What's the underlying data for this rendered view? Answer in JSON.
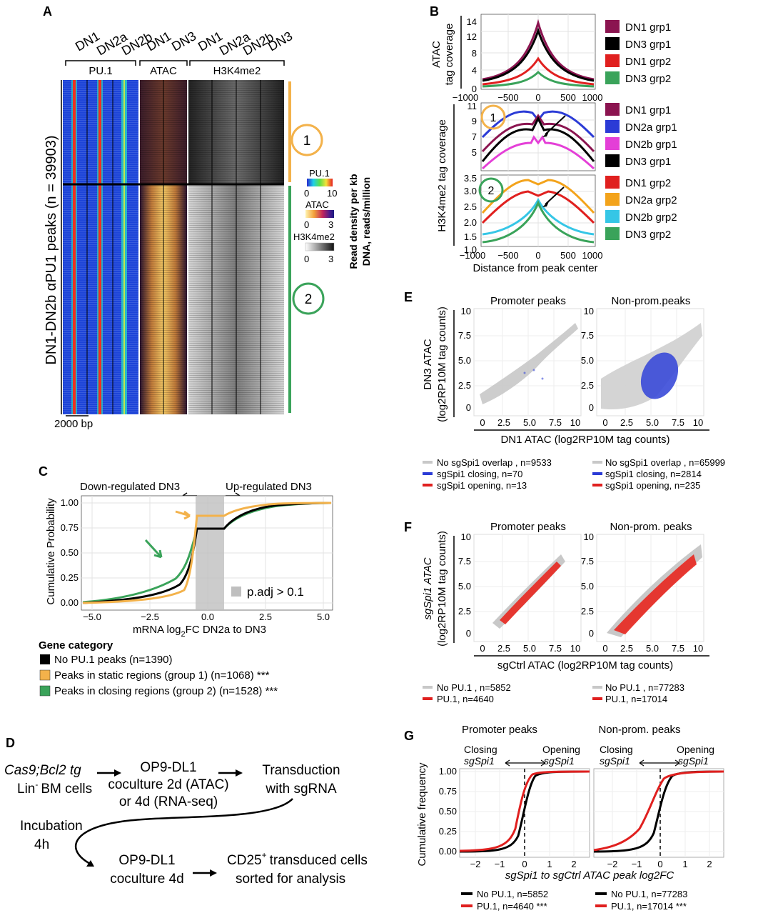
{
  "panels": {
    "A": {
      "letter": "A",
      "col_labels": [
        "DN1",
        "DN2a",
        "DN2b",
        "DN1",
        "DN3",
        "DN1",
        "DN2a",
        "DN2b",
        "DN3"
      ],
      "groups": [
        "PU.1",
        "ATAC",
        "H3K4me2"
      ],
      "ylabel": "DN1-DN2b αPU1 peaks (n = 39903)",
      "cluster1": "1",
      "cluster2": "2",
      "scale": "2000 bp",
      "legend_title": "Read density per kb DNA, reads/million",
      "legend_line1": "Read density per kb",
      "legend_line2": "DNA, reads/million",
      "legends": [
        {
          "name": "PU.1",
          "min": "0",
          "max": "10"
        },
        {
          "name": "ATAC",
          "min": "0",
          "max": "3"
        },
        {
          "name": "H3K4me2",
          "min": "0",
          "max": "3"
        }
      ]
    },
    "B": {
      "letter": "B",
      "top_ylabel1": "ATAC",
      "top_ylabel2": "tag coverage",
      "bottom_ylabel": "H3K4me2 tag coverage",
      "xlabel": "Distance from peak center",
      "marker1": "1",
      "marker2": "2",
      "top_legend": [
        "DN1 grp1",
        "DN3 grp1",
        "DN1 grp2",
        "DN3 grp2"
      ],
      "mid_legend": [
        "DN1 grp1",
        "DN2a grp1",
        "DN2b grp1",
        "DN3 grp1"
      ],
      "bot_legend": [
        "DN1 grp2",
        "DN2a grp2",
        "DN2b grp2",
        "DN3 grp2"
      ],
      "top_yticks": [
        "0",
        "4",
        "8",
        "12",
        "14"
      ],
      "mid_yticks": [
        "5",
        "7",
        "9",
        "11"
      ],
      "bot_yticks": [
        "1.0",
        "1.5",
        "2.0",
        "2.5",
        "3.0",
        "3.5"
      ],
      "xticks": [
        "−1000",
        "−500",
        "0",
        "500",
        "1000"
      ]
    },
    "C": {
      "letter": "C",
      "down_label": "Down-regulated DN3",
      "up_label": "Up-regulated DN3",
      "ylabel": "Cumulative Probability",
      "xlabel": "mRNA log2FC DN2a to DN3",
      "xlabel_main": "mRNA log",
      "xlabel_sub": "2",
      "xlabel_tail": "FC DN2a to DN3",
      "xticks": [
        "−5.0",
        "−2.5",
        "0.0",
        "2.5",
        "5.0"
      ],
      "yticks": [
        "0.00",
        "0.25",
        "0.50",
        "0.75",
        "1.00"
      ],
      "shade_label": "p.adj > 0.1",
      "legend_title": "Gene category",
      "legend": [
        {
          "label": "No PU.1 peaks (n=1390)",
          "color": "#000000"
        },
        {
          "label": "Peaks in static regions (group 1) (n=1068) ***",
          "color": "#f3b24b"
        },
        {
          "label": "Peaks in closing regions (group 2) (n=1528) ***",
          "color": "#3aa35a"
        }
      ]
    },
    "D": {
      "letter": "D",
      "box1_l1": "Cas9;Bcl2 tg",
      "box1_l2": "Lin",
      "box1_l2b": "BM cells",
      "box2_l1": "OP9-DL1",
      "box2_l2": "coculture 2d (ATAC)",
      "box2_l3": "or 4d (RNA-seq)",
      "box3_l1": "Transduction",
      "box3_l2": "with sgRNA",
      "incubation_l1": "Incubation",
      "incubation_l2": "4h",
      "box4_l1": "OP9-DL1",
      "box4_l2": "coculture 4d",
      "box5_l1": "CD25",
      "box5_l1b": "transduced cells",
      "box5_l2": "sorted for analysis"
    },
    "E": {
      "letter": "E",
      "left_title": "Promoter peaks",
      "right_title": "Non-prom.peaks",
      "ylabel1": "DN3 ATAC",
      "ylabel2": "(log2RP10M tag counts)",
      "xlabel": "DN1 ATAC (log2RP10M tag counts)",
      "ticks": [
        "0",
        "2.5",
        "5.0",
        "7.5",
        "10"
      ],
      "left_legend": [
        "No sgSpi1 overlap , n=9533",
        "sgSpi1 closing, n=70",
        "sgSpi1 opening, n=13"
      ],
      "right_legend": [
        "No sgSpi1 overlap , n=65999",
        "sgSpi1 closing, n=2814",
        "sgSpi1 opening, n=235"
      ]
    },
    "F": {
      "letter": "F",
      "left_title": "Promoter peaks",
      "right_title": "Non-prom. peaks",
      "ylabel1": "sgSpi1 ATAC",
      "ylabel2": "(log2RP10M tag counts)",
      "xlabel": "sgCtrl ATAC (log2RP10M tag counts)",
      "ticks": [
        "0",
        "2.5",
        "5.0",
        "7.5",
        "10"
      ],
      "left_legend": [
        "No PU.1 , n=5852",
        "PU.1, n=4640"
      ],
      "right_legend": [
        "No PU.1 , n=77283",
        "PU.1, n=17014"
      ]
    },
    "G": {
      "letter": "G",
      "left_title": "Promoter peaks",
      "right_title": "Non-prom. peaks",
      "closing": "Closing",
      "opening": "Opening",
      "sg": "sgSpi1",
      "ylabel": "Cumulative frequency",
      "xlabel": "sgSpi1 to sgCtrl ATAC peak log2FC",
      "xticks": [
        "−2",
        "−1",
        "0",
        "1",
        "2"
      ],
      "yticks": [
        "0.00",
        "0.25",
        "0.50",
        "0.75",
        "1.00"
      ],
      "left_legend": [
        "No PU.1, n=5852",
        "PU.1, n=4640 ***"
      ],
      "right_legend": [
        "No PU.1, n=77283",
        "PU.1, n=17014 ***"
      ]
    }
  },
  "colors": {
    "grp_orange": "#f3b24b",
    "grp_green": "#3aa35a",
    "blue": "#2b3bd6",
    "red": "#e0201f",
    "magenta": "#e43fd7",
    "maroon": "#8b1450",
    "cyan": "#35c6e6"
  },
  "chart_data": [
    {
      "type": "line",
      "title": "",
      "ylabel": "ATAC tag coverage",
      "x": [
        -1000,
        -500,
        0,
        500,
        1000
      ],
      "ylim": [
        0,
        14
      ],
      "series": [
        {
          "name": "DN1 grp1",
          "values": [
            1.5,
            3,
            13.8,
            3,
            1.5
          ]
        },
        {
          "name": "DN3 grp1",
          "values": [
            1.3,
            2.7,
            12.6,
            2.7,
            1.3
          ]
        },
        {
          "name": "DN1 grp2",
          "values": [
            0.7,
            1.4,
            6.6,
            1.4,
            0.7
          ]
        },
        {
          "name": "DN3 grp2",
          "values": [
            0.3,
            0.6,
            3.2,
            0.6,
            0.3
          ]
        }
      ]
    },
    {
      "type": "line",
      "ylabel": "H3K4me2 tag coverage",
      "x": [
        -1000,
        -500,
        0,
        500,
        1000
      ],
      "ylim": [
        4,
        11
      ],
      "series": [
        {
          "name": "DN1 grp1",
          "values": [
            6,
            8.3,
            8.8,
            8.3,
            6
          ]
        },
        {
          "name": "DN2a grp1",
          "values": [
            7.5,
            9.8,
            9,
            9.8,
            7.5
          ]
        },
        {
          "name": "DN2b grp1",
          "values": [
            4.5,
            6.2,
            6.8,
            6.2,
            4.5
          ]
        },
        {
          "name": "DN3 grp1",
          "values": [
            5.2,
            8,
            9.1,
            8,
            5.2
          ]
        }
      ]
    },
    {
      "type": "line",
      "xlabel": "Distance from peak center",
      "x": [
        -1000,
        -500,
        0,
        500,
        1000
      ],
      "ylim": [
        1,
        3.5
      ],
      "series": [
        {
          "name": "DN1 grp2",
          "values": [
            1.8,
            2.6,
            2.9,
            2.6,
            1.8
          ]
        },
        {
          "name": "DN2a grp2",
          "values": [
            2.1,
            3.1,
            3.5,
            3.1,
            2.1
          ]
        },
        {
          "name": "DN2b grp2",
          "values": [
            1.2,
            1.6,
            2.6,
            1.6,
            1.2
          ]
        },
        {
          "name": "DN3 grp2",
          "values": [
            1.05,
            1.3,
            2.5,
            1.3,
            1.05
          ]
        }
      ]
    },
    {
      "type": "line",
      "ylabel": "Cumulative Probability",
      "xlabel": "mRNA log2FC DN2a to DN3",
      "x": [
        -5,
        -2.5,
        -0.6,
        0.6,
        2.5,
        5
      ],
      "ylim": [
        0,
        1
      ],
      "series": [
        {
          "name": "No PU.1 peaks (n=1390)",
          "values": [
            0.01,
            0.2,
            0.74,
            0.74,
            0.94,
            0.99
          ]
        },
        {
          "name": "Peaks in static regions (group 1) (n=1068) ***",
          "values": [
            0.005,
            0.12,
            0.86,
            0.86,
            0.96,
            0.99
          ]
        },
        {
          "name": "Peaks in closing regions (group 2) (n=1528) ***",
          "values": [
            0.02,
            0.3,
            0.74,
            0.74,
            0.93,
            0.99
          ]
        }
      ]
    },
    {
      "type": "line",
      "ylabel": "Cumulative frequency",
      "xlabel": "sgSpi1 to sgCtrl ATAC peak log2FC",
      "x": [
        -2,
        -1,
        -0.5,
        0,
        0.5,
        1,
        2
      ],
      "ylim": [
        0,
        1
      ],
      "series": [
        {
          "name": "No PU.1, n=5852",
          "values": [
            0,
            0.01,
            0.1,
            0.55,
            0.92,
            0.99,
            1
          ]
        },
        {
          "name": "PU.1, n=4640 ***",
          "values": [
            0.01,
            0.03,
            0.2,
            0.7,
            0.97,
            1,
            1
          ]
        }
      ]
    }
  ]
}
